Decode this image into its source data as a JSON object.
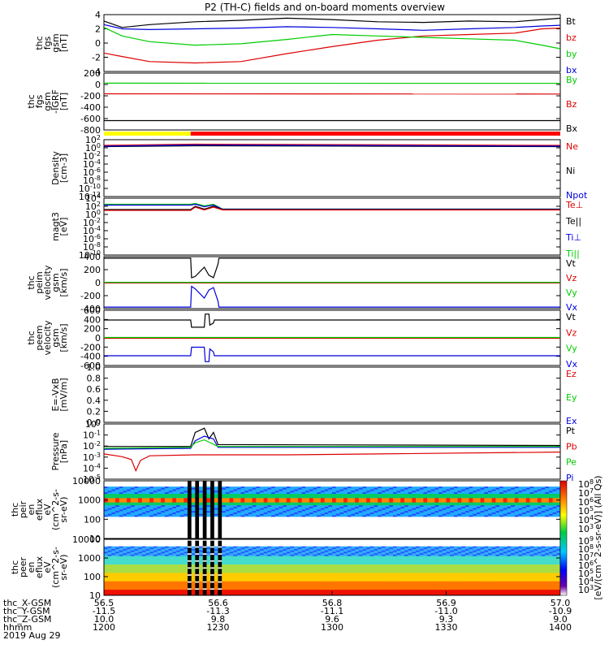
{
  "title": "P2 (TH-C) fields and on-board moments overview",
  "colors": {
    "black": "#000000",
    "red": "#dd0000",
    "green": "#00cc00",
    "blue": "#0000dd",
    "yellow": "#ffff00",
    "bar_red": "#ff0000"
  },
  "chart_data": [
    {
      "type": "line",
      "ylabel": [
        "thc",
        "fgs",
        "gsm",
        "[nT]"
      ],
      "yticks": [
        "4",
        "2",
        "0",
        "-2",
        "-4"
      ],
      "ylim": [
        -4,
        4
      ],
      "legend": [
        {
          "name": "Bt",
          "color": "black"
        },
        {
          "name": "bz",
          "color": "red"
        },
        {
          "name": "by",
          "color": "green"
        },
        {
          "name": "bx",
          "color": "blue"
        }
      ],
      "series": [
        {
          "name": "Bt",
          "color": "black",
          "x": [
            56.5,
            56.52,
            56.55,
            56.6,
            56.65,
            56.7,
            56.75,
            56.8,
            56.85,
            56.9,
            56.95,
            56.98,
            57.0
          ],
          "y": [
            3.1,
            2.2,
            2.6,
            3.0,
            3.2,
            3.5,
            3.3,
            3.0,
            2.9,
            3.1,
            3.0,
            3.3,
            3.5
          ]
        },
        {
          "name": "bz",
          "color": "red",
          "x": [
            56.5,
            56.52,
            56.55,
            56.6,
            56.65,
            56.7,
            56.75,
            56.8,
            56.85,
            56.9,
            56.95,
            56.98,
            57.0
          ],
          "y": [
            -1.4,
            -1.9,
            -2.6,
            -2.8,
            -2.6,
            -1.5,
            -0.5,
            0.4,
            1.0,
            1.2,
            1.4,
            2.0,
            2.1
          ]
        },
        {
          "name": "by",
          "color": "green",
          "x": [
            56.5,
            56.52,
            56.55,
            56.6,
            56.65,
            56.7,
            56.75,
            56.8,
            56.85,
            56.9,
            56.95,
            56.98,
            57.0
          ],
          "y": [
            2.2,
            1.0,
            0.2,
            -0.3,
            -0.1,
            0.5,
            1.2,
            1.0,
            0.8,
            0.6,
            0.4,
            -0.3,
            -0.8
          ]
        },
        {
          "name": "bx",
          "color": "blue",
          "x": [
            56.5,
            56.52,
            56.55,
            56.6,
            56.65,
            56.7,
            56.75,
            56.8,
            56.85,
            56.9,
            56.95,
            56.98,
            57.0
          ],
          "y": [
            2.6,
            2.0,
            1.9,
            2.0,
            2.1,
            2.3,
            2.2,
            2.0,
            1.8,
            2.0,
            2.2,
            2.4,
            2.5
          ]
        }
      ]
    },
    {
      "type": "line",
      "ylabel": [
        "thc",
        "fgs",
        "gsm",
        "-IGRF",
        "[nT]"
      ],
      "yticks": [
        "200",
        "0",
        "-200",
        "-400",
        "-600",
        "-800"
      ],
      "ylim": [
        -900,
        200
      ],
      "legend": [
        {
          "name": "By",
          "color": "green"
        },
        {
          "name": "Bz",
          "color": "red"
        },
        {
          "name": "Bx",
          "color": "black"
        }
      ],
      "series": [
        {
          "name": "By",
          "color": "green",
          "x": [
            56.5,
            57.0
          ],
          "y": [
            5,
            3
          ]
        },
        {
          "name": "Bz",
          "color": "red",
          "x": [
            56.5,
            57.0
          ],
          "y": [
            -200,
            -205
          ]
        },
        {
          "name": "Bx",
          "color": "black",
          "x": [
            56.5,
            57.0
          ],
          "y": [
            -720,
            -720
          ]
        }
      ]
    },
    {
      "type": "line",
      "log": true,
      "ylabel": [
        "Density",
        "[cm-3]"
      ],
      "yticks": [
        "10^2",
        "10^0",
        "10^-2",
        "10^-4",
        "10^-6",
        "10^-8",
        "10^-10",
        "10^-12"
      ],
      "ylim": [
        -12,
        2
      ],
      "legend": [
        {
          "name": "Ne",
          "color": "red"
        },
        {
          "name": "Ni",
          "color": "black"
        },
        {
          "name": "Npot",
          "color": "blue"
        }
      ],
      "series": [
        {
          "name": "Ne",
          "color": "red",
          "x": [
            56.5,
            56.6,
            57.0
          ],
          "y": [
            0.6,
            0.9,
            0.6
          ]
        },
        {
          "name": "Ni",
          "color": "black",
          "x": [
            56.5,
            56.6,
            57.0
          ],
          "y": [
            0.3,
            0.5,
            0.3
          ]
        },
        {
          "name": "Npot",
          "color": "blue",
          "x": [
            56.5,
            56.6,
            57.0
          ],
          "y": [
            0.4,
            0.7,
            0.4
          ]
        }
      ]
    },
    {
      "type": "line",
      "log": true,
      "ylabel": [
        "magt3",
        "[eV]"
      ],
      "yticks": [
        "10^4",
        "10^2",
        "10^0",
        "10^-2",
        "10^-4",
        "10^-6",
        "10^-8",
        "10^-10"
      ],
      "ylim": [
        -10,
        4
      ],
      "legend": [
        {
          "name": "Te⊥",
          "color": "red"
        },
        {
          "name": "Te||",
          "color": "black"
        },
        {
          "name": "Ti⊥",
          "color": "blue"
        },
        {
          "name": "Ti||",
          "color": "green"
        }
      ],
      "series": [
        {
          "name": "Ti||",
          "color": "green",
          "x": [
            56.5,
            56.595,
            56.6,
            56.61,
            56.62,
            56.63,
            57.0
          ],
          "y": [
            2.5,
            2.5,
            2.7,
            2.1,
            2.5,
            1.3,
            1.3
          ]
        },
        {
          "name": "Ti⊥",
          "color": "blue",
          "x": [
            56.5,
            56.595,
            56.6,
            56.61,
            56.62,
            56.63,
            57.0
          ],
          "y": [
            2.3,
            2.3,
            2.5,
            1.9,
            2.3,
            1.3,
            1.3
          ]
        },
        {
          "name": "Te||",
          "color": "black",
          "x": [
            56.5,
            56.595,
            56.6,
            56.61,
            56.62,
            56.63,
            57.0
          ],
          "y": [
            1.2,
            1.2,
            2.0,
            1.3,
            2.0,
            1.2,
            1.2
          ]
        },
        {
          "name": "Te⊥",
          "color": "red",
          "x": [
            56.5,
            56.595,
            56.6,
            56.61,
            56.62,
            56.63,
            57.0
          ],
          "y": [
            1.0,
            1.0,
            1.8,
            1.1,
            1.8,
            1.1,
            1.1
          ]
        }
      ]
    },
    {
      "type": "line",
      "ylabel": [
        "thc",
        "peim",
        "velocity",
        "gsm",
        "[km/s]"
      ],
      "yticks": [
        "400",
        "200",
        "0",
        "-200",
        "-400"
      ],
      "ylim": [
        -420,
        420
      ],
      "legend": [
        {
          "name": "Vt",
          "color": "black"
        },
        {
          "name": "Vz",
          "color": "red"
        },
        {
          "name": "Vy",
          "color": "green"
        },
        {
          "name": "Vx",
          "color": "blue"
        }
      ],
      "series": [
        {
          "name": "Vt",
          "color": "black",
          "x": [
            56.5,
            56.595,
            56.596,
            56.6,
            56.61,
            56.615,
            56.62,
            56.625,
            56.626,
            57.0
          ],
          "y": [
            395,
            395,
            80,
            100,
            250,
            120,
            80,
            300,
            395,
            395
          ]
        },
        {
          "name": "Vz",
          "color": "red",
          "x": [
            56.5,
            57.0
          ],
          "y": [
            -5,
            -5
          ]
        },
        {
          "name": "Vy",
          "color": "green",
          "x": [
            56.5,
            57.0
          ],
          "y": [
            5,
            5
          ]
        },
        {
          "name": "Vx",
          "color": "blue",
          "x": [
            56.5,
            56.595,
            56.596,
            56.6,
            56.61,
            56.615,
            56.62,
            56.625,
            56.626,
            57.0
          ],
          "y": [
            -395,
            -395,
            -60,
            -100,
            -250,
            -120,
            -80,
            -300,
            -395,
            -395
          ]
        }
      ]
    },
    {
      "type": "line",
      "ylabel": [
        "thc",
        "peem",
        "velocity",
        "gsm",
        "[km/s]"
      ],
      "yticks": [
        "600",
        "400",
        "200",
        "0",
        "-200",
        "-400",
        "-600"
      ],
      "ylim": [
        -650,
        650
      ],
      "legend": [
        {
          "name": "Vt",
          "color": "black"
        },
        {
          "name": "Vz",
          "color": "red"
        },
        {
          "name": "Vy",
          "color": "green"
        },
        {
          "name": "Vx",
          "color": "blue"
        }
      ],
      "series": [
        {
          "name": "Vt",
          "color": "black",
          "x": [
            56.5,
            56.595,
            56.596,
            56.61,
            56.611,
            56.615,
            56.616,
            56.62,
            56.621,
            57.0
          ],
          "y": [
            420,
            420,
            250,
            250,
            560,
            560,
            300,
            350,
            420,
            420
          ]
        },
        {
          "name": "Vz",
          "color": "red",
          "x": [
            56.5,
            57.0
          ],
          "y": [
            -10,
            -10
          ]
        },
        {
          "name": "Vy",
          "color": "green",
          "x": [
            56.5,
            57.0
          ],
          "y": [
            10,
            10
          ]
        },
        {
          "name": "Vx",
          "color": "blue",
          "x": [
            56.5,
            56.595,
            56.596,
            56.61,
            56.611,
            56.615,
            56.616,
            56.62,
            56.621,
            57.0
          ],
          "y": [
            -420,
            -420,
            -220,
            -220,
            -560,
            -560,
            -260,
            -330,
            -420,
            -420
          ]
        }
      ]
    },
    {
      "type": "line",
      "ylabel": [
        "E=-VxB",
        "[mV/m]"
      ],
      "yticks": [
        "1.0",
        "0.8",
        "0.6",
        "0.4",
        "0.2",
        "0.0"
      ],
      "ylim": [
        0,
        1
      ],
      "legend": [
        {
          "name": "Ez",
          "color": "red"
        },
        {
          "name": "Ey",
          "color": "green"
        },
        {
          "name": "Ex",
          "color": "blue"
        }
      ],
      "series": []
    },
    {
      "type": "line",
      "log": true,
      "ylabel": [
        "Pressure",
        "[nPa]"
      ],
      "yticks": [
        "10^0",
        "10^-1",
        "10^-2",
        "10^-3",
        "10^-4",
        "10^-5"
      ],
      "ylim": [
        -5.5,
        0.4
      ],
      "legend": [
        {
          "name": "Pt",
          "color": "black"
        },
        {
          "name": "Pb",
          "color": "red"
        },
        {
          "name": "Pe",
          "color": "green"
        },
        {
          "name": "Pi",
          "color": "blue"
        }
      ],
      "series": [
        {
          "name": "Pt",
          "color": "black",
          "x": [
            56.5,
            56.595,
            56.6,
            56.61,
            56.615,
            56.62,
            56.625,
            57.0
          ],
          "y": [
            -2.0,
            -2.0,
            -0.5,
            -0.05,
            -1.2,
            -0.5,
            -1.8,
            -1.9
          ]
        },
        {
          "name": "Pi",
          "color": "blue",
          "x": [
            56.5,
            56.595,
            56.6,
            56.61,
            56.62,
            56.625,
            57.0
          ],
          "y": [
            -2.3,
            -2.2,
            -1.4,
            -0.9,
            -1.2,
            -2.1,
            -2.1
          ]
        },
        {
          "name": "Pe",
          "color": "green",
          "x": [
            56.5,
            56.595,
            56.6,
            56.61,
            56.625,
            57.0
          ],
          "y": [
            -2.2,
            -2.1,
            -1.6,
            -1.3,
            -2.0,
            -2.0
          ]
        },
        {
          "name": "Pb",
          "color": "red",
          "x": [
            56.5,
            56.52,
            56.53,
            56.535,
            56.54,
            56.55,
            56.6,
            56.7,
            56.8,
            57.0
          ],
          "y": [
            -2.8,
            -3.1,
            -3.4,
            -4.6,
            -3.5,
            -3.0,
            -2.9,
            -2.9,
            -2.8,
            -2.6
          ]
        }
      ]
    },
    {
      "type": "heatmap",
      "ylabel": [
        "thc",
        "peir",
        "en",
        "eflux",
        "eV",
        "(cm^2-s-",
        "sr-eV)"
      ],
      "yticks": [
        "10000",
        "1000",
        "100",
        "10"
      ],
      "colorbar_ticks": [
        "10^8",
        "10^7",
        "10^6",
        "10^5",
        "10^4",
        "10^3"
      ]
    },
    {
      "type": "heatmap",
      "ylabel": [
        "thc",
        "peer",
        "en",
        "eflux",
        "eV",
        "(cm^2-s-",
        "sr-eV)"
      ],
      "yticks": [
        "10000",
        "1000",
        "100",
        "10"
      ],
      "colorbar_ticks": [
        "10^9",
        "10^8",
        "10^7",
        "10^6",
        "10^5",
        "10^4",
        "10^3"
      ]
    }
  ],
  "colorbar_label": "[eV/(cm^2-s-sr-eV)] (All Qs)",
  "xaxis": {
    "row_labels": [
      "thc_X-GSM",
      "thc_Y-GSM",
      "thc_Z-GSM",
      "hhmm",
      "2019 Aug 29"
    ],
    "ticks": [
      {
        "v": [
          "56.5",
          "-11.5",
          "10.0",
          "1200"
        ]
      },
      {
        "v": [
          "56.6",
          "-11.3",
          "9.8",
          "1230"
        ]
      },
      {
        "v": [
          "56.8",
          "-11.1",
          "9.6",
          "1300"
        ]
      },
      {
        "v": [
          "56.9",
          "-11.0",
          "9.3",
          "1330"
        ]
      },
      {
        "v": [
          "57.0",
          "-10.9",
          "9.0",
          "1400"
        ]
      }
    ],
    "xlim": [
      56.5,
      57.0
    ]
  }
}
